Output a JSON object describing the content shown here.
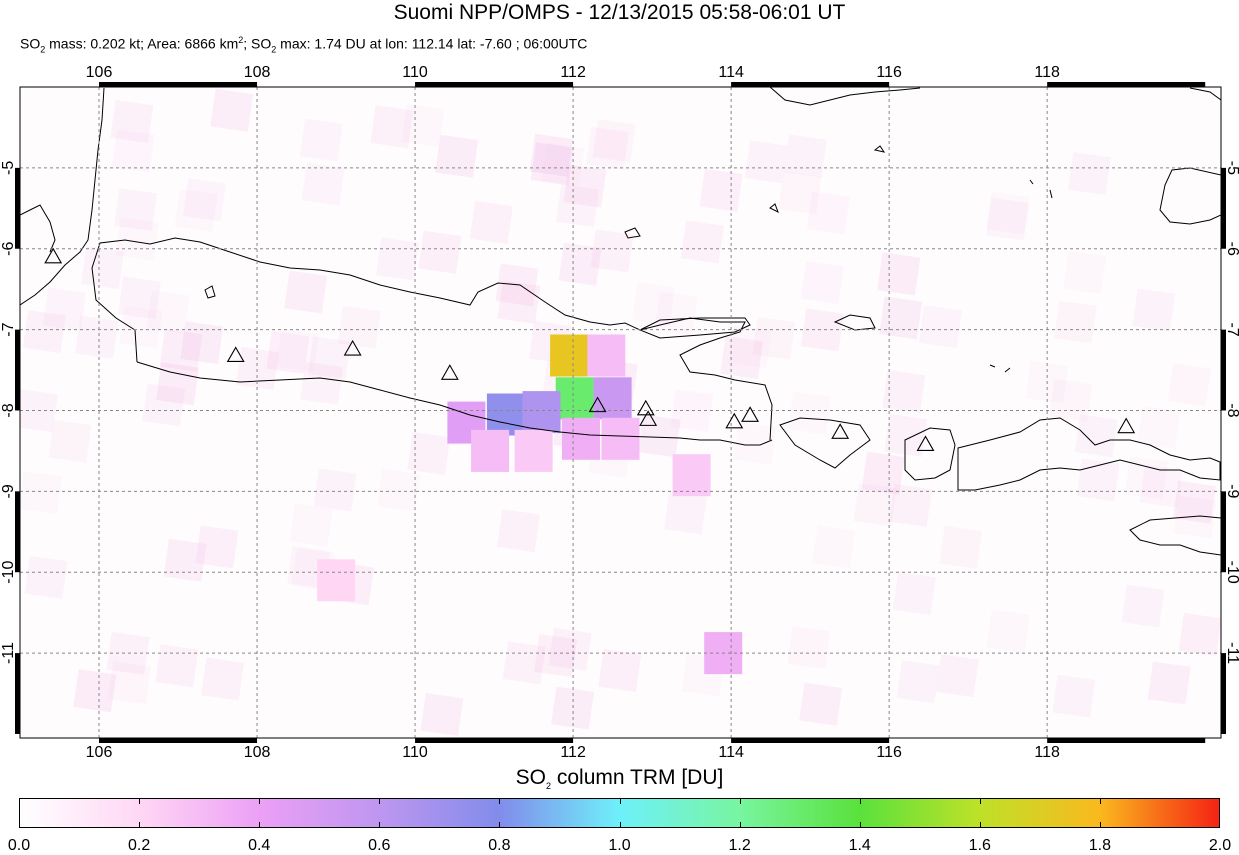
{
  "title": "Suomi NPP/OMPS - 12/13/2015 05:58-06:01 UT",
  "subtitle": {
    "p1": "SO",
    "p2": " mass: 0.202 kt; Area: 6866 km",
    "p3": "; SO",
    "p4": " max: 1.74 DU at lon: 112.14 lat: -7.60 ; 06:00UTC",
    "sub": "2",
    "sup": "2"
  },
  "map": {
    "lon_range": [
      105,
      120.2
    ],
    "lat_range": [
      -12.05,
      -4.0
    ],
    "lon_ticks": [
      "106",
      "108",
      "110",
      "112",
      "114",
      "116",
      "118"
    ],
    "lat_ticks": [
      "-5",
      "-6",
      "-7",
      "-8",
      "-9",
      "-10",
      "-11"
    ],
    "volcanoes": [
      [
        105.42,
        -6.1
      ],
      [
        107.73,
        -7.32
      ],
      [
        109.21,
        -7.24
      ],
      [
        110.44,
        -7.54
      ],
      [
        112.31,
        -7.94
      ],
      [
        112.92,
        -7.98
      ],
      [
        112.95,
        -8.11
      ],
      [
        114.04,
        -8.14
      ],
      [
        114.24,
        -8.06
      ],
      [
        115.38,
        -8.27
      ],
      [
        116.46,
        -8.42
      ],
      [
        119.0,
        -8.2
      ]
    ],
    "so2_pixels": [
      {
        "lon": 111.95,
        "lat": -7.32,
        "du": 1.74
      },
      {
        "lon": 112.42,
        "lat": -7.32,
        "du": 0.3
      },
      {
        "lon": 112.02,
        "lat": -7.85,
        "du": 1.3
      },
      {
        "lon": 112.5,
        "lat": -7.85,
        "du": 0.55
      },
      {
        "lon": 111.15,
        "lat": -8.05,
        "du": 0.75
      },
      {
        "lon": 111.6,
        "lat": -8.02,
        "du": 0.65
      },
      {
        "lon": 110.65,
        "lat": -8.15,
        "du": 0.45
      },
      {
        "lon": 112.1,
        "lat": -8.35,
        "du": 0.35
      },
      {
        "lon": 112.6,
        "lat": -8.35,
        "du": 0.3
      },
      {
        "lon": 110.95,
        "lat": -8.5,
        "du": 0.3
      },
      {
        "lon": 111.5,
        "lat": -8.5,
        "du": 0.25
      },
      {
        "lon": 113.5,
        "lat": -8.8,
        "du": 0.25
      },
      {
        "lon": 113.9,
        "lat": -11.0,
        "du": 0.35
      },
      {
        "lon": 109.0,
        "lat": -10.1,
        "du": 0.2
      }
    ]
  },
  "colorbar": {
    "title_p1": "SO",
    "title_sub": "2",
    "title_p2": " column TRM [DU]",
    "min": 0.0,
    "max": 2.0,
    "ticks": [
      "0.0",
      "0.2",
      "0.4",
      "0.6",
      "0.8",
      "1.0",
      "1.2",
      "1.4",
      "1.6",
      "1.8",
      "2.0"
    ]
  }
}
